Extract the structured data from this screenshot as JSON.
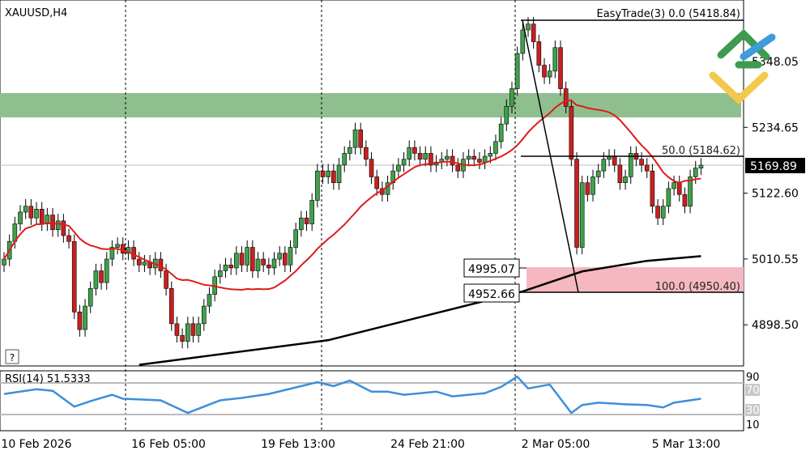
{
  "symbol_title": "XAUUSD,H4",
  "help_label": "?",
  "top_label": "EasyTrade(3) 0.0 (5418.84)",
  "price_axis": [
    "5348.05",
    "5234.65",
    "5122.60",
    "5010.55",
    "4898.50"
  ],
  "current_price": "5169.89",
  "level_labels": {
    "upper": "4995.07",
    "lower": "4952.66"
  },
  "fib": {
    "f50": "50.0 (5184.62)",
    "f100": "100.0 (4950.40)",
    "f0": "0.0 (5418.84)"
  },
  "time_axis": [
    "10 Feb 2026",
    "16 Feb 05:00",
    "19 Feb 13:00",
    "24 Feb 21:00",
    "2 Mar 05:00",
    "5 Mar 13:00"
  ],
  "rsi": {
    "title": "RSI(14) 51.5333",
    "levels": [
      "90",
      "70",
      "30",
      "10"
    ]
  },
  "colors": {
    "bull": "#3ea34a",
    "bear": "#cc1f1f",
    "ma_fast": "#e01b1b",
    "ma_slow": "#000000",
    "rsi": "#3d8fd9",
    "supply_zone": "#8fbf8f",
    "demand_zone": "#f5b8c0"
  },
  "chart_data": {
    "type": "candlestick",
    "timeframe": "H4",
    "closes": [
      5010,
      5040,
      5070,
      5090,
      5100,
      5080,
      5095,
      5070,
      5085,
      5060,
      5075,
      5050,
      5040,
      4920,
      4890,
      4930,
      4960,
      4990,
      4970,
      5010,
      5030,
      5035,
      5020,
      5030,
      5010,
      5000,
      5005,
      4995,
      5010,
      4990,
      4960,
      4900,
      4880,
      4870,
      4900,
      4880,
      4900,
      4930,
      4950,
      4980,
      4990,
      5000,
      4995,
      5020,
      5000,
      5030,
      4990,
      5010,
      5000,
      4995,
      5010,
      5020,
      5000,
      5030,
      5060,
      5080,
      5070,
      5110,
      5160,
      5150,
      5160,
      5140,
      5170,
      5190,
      5200,
      5230,
      5200,
      5180,
      5150,
      5130,
      5120,
      5140,
      5160,
      5170,
      5180,
      5200,
      5190,
      5180,
      5190,
      5170,
      5175,
      5180,
      5185,
      5170,
      5160,
      5180,
      5185,
      5180,
      5175,
      5185,
      5190,
      5210,
      5240,
      5270,
      5300,
      5360,
      5400,
      5410,
      5380,
      5340,
      5320,
      5330,
      5370,
      5300,
      5270,
      5180,
      5030,
      5140,
      5120,
      5150,
      5160,
      5180,
      5185,
      5170,
      5140,
      5150,
      5190,
      5180,
      5170,
      5160,
      5100,
      5080,
      5100,
      5130,
      5140,
      5120,
      5100,
      5150,
      5165,
      5169.89
    ],
    "ma_slow": [
      [
        25,
        4830
      ],
      [
        60,
        4872
      ],
      [
        96,
        4955
      ],
      [
        107,
        4989
      ],
      [
        119,
        5007
      ],
      [
        129,
        5015
      ]
    ],
    "rsi_series": [
      [
        0,
        56
      ],
      [
        6,
        62
      ],
      [
        9,
        60
      ],
      [
        13,
        40
      ],
      [
        16,
        47
      ],
      [
        20,
        55
      ],
      [
        22,
        50
      ],
      [
        29,
        48
      ],
      [
        34,
        32
      ],
      [
        40,
        48
      ],
      [
        44,
        51
      ],
      [
        49,
        56
      ],
      [
        58,
        71
      ],
      [
        61,
        66
      ],
      [
        64,
        73
      ],
      [
        68,
        59
      ],
      [
        71,
        59
      ],
      [
        74,
        55
      ],
      [
        80,
        59
      ],
      [
        83,
        53
      ],
      [
        89,
        57
      ],
      [
        92,
        65
      ],
      [
        95,
        78
      ],
      [
        97,
        63
      ],
      [
        101,
        68
      ],
      [
        105,
        32
      ],
      [
        107,
        42
      ],
      [
        110,
        45
      ],
      [
        115,
        43
      ],
      [
        119,
        42
      ],
      [
        122,
        39
      ],
      [
        124,
        45
      ],
      [
        129,
        50
      ]
    ],
    "ylim": [
      4850,
      5430
    ],
    "zones": {
      "supply": [
        5265,
        5305
      ],
      "demand": [
        4950.4,
        4995.07
      ]
    },
    "fib_levels": {
      "0": 5418.84,
      "50": 5184.62,
      "100": 4950.4
    }
  }
}
